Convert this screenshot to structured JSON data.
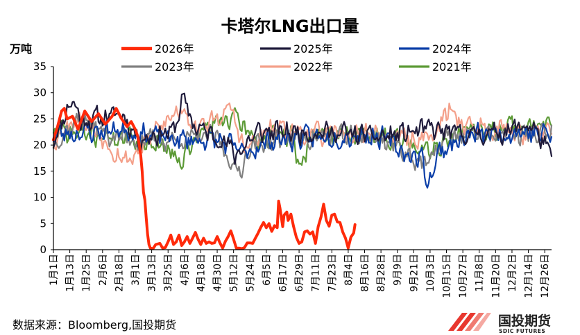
{
  "chart_data": {
    "type": "line",
    "title": "卡塔尔LNG出口量",
    "ylabel": "万吨",
    "xlabel": "",
    "ylim": [
      0,
      35
    ],
    "yticks": [
      0,
      5,
      10,
      15,
      20,
      25,
      30,
      35
    ],
    "x_tick_labels": [
      "1月1日",
      "1月13日",
      "1月25日",
      "2月6日",
      "2月18日",
      "3月1日",
      "3月13日",
      "3月25日",
      "4月6日",
      "4月18日",
      "4月30日",
      "5月12日",
      "5月24日",
      "6月5日",
      "6月17日",
      "6月29日",
      "7月11日",
      "7月23日",
      "8月4日",
      "8月16日",
      "8月28日",
      "9月9日",
      "9月21日",
      "10月3日",
      "10月15日",
      "10月27日",
      "11月8日",
      "11月20日",
      "12月2日",
      "12月14日",
      "12月26日"
    ],
    "x_days_per_tick": 12,
    "days_in_year": 366,
    "legend_position": "top",
    "grid": false,
    "series": [
      {
        "name": "2026年",
        "color": "#FF2A0A",
        "width": 4,
        "anchors": [
          [
            0,
            21
          ],
          [
            3,
            23.5
          ],
          [
            6,
            26.5
          ],
          [
            8,
            27
          ],
          [
            10,
            25
          ],
          [
            14,
            25.5
          ],
          [
            18,
            23
          ],
          [
            23,
            26.5
          ],
          [
            28,
            24.5
          ],
          [
            33,
            26
          ],
          [
            38,
            24
          ],
          [
            43,
            25.5
          ],
          [
            46,
            27
          ],
          [
            50,
            25
          ],
          [
            54,
            23.5
          ],
          [
            57,
            24.5
          ],
          [
            60,
            23
          ],
          [
            62,
            21.5
          ],
          [
            64,
            18
          ],
          [
            65,
            15
          ],
          [
            66,
            11
          ],
          [
            67,
            9.5
          ],
          [
            68,
            6
          ],
          [
            69,
            3
          ],
          [
            70,
            1
          ],
          [
            71,
            0.3
          ],
          [
            73,
            0.2
          ],
          [
            75,
            1
          ],
          [
            78,
            1.2
          ],
          [
            80,
            0.3
          ],
          [
            82,
            0.4
          ],
          [
            84,
            1.5
          ],
          [
            86,
            2.8
          ],
          [
            88,
            1
          ],
          [
            90,
            1.5
          ],
          [
            92,
            2.8
          ],
          [
            94,
            0.8
          ],
          [
            96,
            1.5
          ],
          [
            98,
            2.5
          ],
          [
            100,
            1.2
          ],
          [
            102,
            2.2
          ],
          [
            104,
            3.3
          ],
          [
            106,
            2
          ],
          [
            108,
            1
          ],
          [
            110,
            2.2
          ],
          [
            112,
            1.2
          ],
          [
            114,
            1.5
          ],
          [
            116,
            1.2
          ],
          [
            118,
            1.3
          ],
          [
            120,
            2.5
          ],
          [
            122,
            1.3
          ],
          [
            124,
            0.3
          ],
          [
            126,
            1.6
          ],
          [
            128,
            2.5
          ],
          [
            130,
            3.6
          ],
          [
            132,
            2
          ],
          [
            134,
            0.3
          ],
          [
            136,
            0.3
          ],
          [
            138,
            0.2
          ],
          [
            140,
            0.4
          ],
          [
            142,
            1.3
          ],
          [
            144,
            1.3
          ],
          [
            146,
            1.2
          ],
          [
            148,
            2.2
          ],
          [
            150,
            3.2
          ],
          [
            152,
            4.3
          ],
          [
            154,
            5.2
          ],
          [
            156,
            4.2
          ],
          [
            158,
            5
          ],
          [
            160,
            3.5
          ],
          [
            162,
            4.6
          ],
          [
            164,
            4.2
          ],
          [
            165,
            9.3
          ],
          [
            166,
            8
          ],
          [
            167,
            6.2
          ],
          [
            168,
            4.4
          ],
          [
            169,
            6.6
          ],
          [
            171,
            7.2
          ],
          [
            172,
            5.6
          ],
          [
            174,
            6.8
          ],
          [
            176,
            4.4
          ],
          [
            178,
            2.4
          ],
          [
            180,
            1.2
          ],
          [
            182,
            1.5
          ],
          [
            184,
            3.4
          ],
          [
            186,
            3.6
          ],
          [
            188,
            3
          ],
          [
            190,
            3.4
          ],
          [
            192,
            1.2
          ],
          [
            194,
            4.4
          ],
          [
            196,
            6.2
          ],
          [
            198,
            8.7
          ],
          [
            200,
            5.6
          ],
          [
            202,
            4.5
          ],
          [
            204,
            6.6
          ],
          [
            206,
            6.8
          ],
          [
            208,
            5.3
          ],
          [
            210,
            5.2
          ],
          [
            212,
            3.4
          ],
          [
            214,
            2.2
          ],
          [
            216,
            0.3
          ],
          [
            218,
            2.4
          ],
          [
            220,
            3.2
          ],
          [
            221,
            4.8
          ]
        ]
      },
      {
        "name": "2025年",
        "color": "#1F1B3B",
        "width": 2.2,
        "base": 22.3,
        "amp": 1.8,
        "seed": 11,
        "anchors": [
          [
            0,
            21
          ],
          [
            14,
            29
          ],
          [
            20,
            24.5
          ],
          [
            50,
            26
          ],
          [
            58,
            23
          ],
          [
            62,
            21
          ],
          [
            80,
            22.5
          ],
          [
            88,
            22.5
          ],
          [
            95,
            29
          ],
          [
            102,
            24
          ],
          [
            115,
            22
          ],
          [
            125,
            21
          ],
          [
            133,
            18
          ],
          [
            140,
            20
          ],
          [
            150,
            22.5
          ],
          [
            200,
            22.5
          ],
          [
            240,
            21.5
          ],
          [
            275,
            23
          ],
          [
            300,
            22
          ],
          [
            330,
            22.5
          ],
          [
            350,
            24
          ],
          [
            365,
            18
          ]
        ]
      },
      {
        "name": "2024年",
        "color": "#0B3FA8",
        "width": 2.2,
        "base": 22,
        "amp": 1.8,
        "seed": 23,
        "anchors": [
          [
            0,
            22
          ],
          [
            50,
            23
          ],
          [
            90,
            21
          ],
          [
            120,
            21
          ],
          [
            140,
            18.5
          ],
          [
            160,
            21
          ],
          [
            200,
            21.5
          ],
          [
            230,
            22
          ],
          [
            245,
            21
          ],
          [
            260,
            18
          ],
          [
            270,
            17.5
          ],
          [
            275,
            12.5
          ],
          [
            282,
            18.5
          ],
          [
            290,
            20
          ],
          [
            310,
            22
          ],
          [
            340,
            22.5
          ],
          [
            365,
            22
          ]
        ]
      },
      {
        "name": "2023年",
        "color": "#808080",
        "width": 2.2,
        "base": 21.8,
        "amp": 1.8,
        "seed": 37,
        "anchors": [
          [
            0,
            20.5
          ],
          [
            20,
            25
          ],
          [
            40,
            22
          ],
          [
            60,
            21
          ],
          [
            90,
            21
          ],
          [
            120,
            21.5
          ],
          [
            135,
            14.5
          ],
          [
            145,
            20
          ],
          [
            180,
            21.5
          ],
          [
            240,
            21.5
          ],
          [
            265,
            17.5
          ],
          [
            275,
            16
          ],
          [
            285,
            21
          ],
          [
            300,
            22
          ],
          [
            330,
            22
          ],
          [
            365,
            22
          ]
        ]
      },
      {
        "name": "2022年",
        "color": "#F4A08A",
        "width": 2.2,
        "base": 22.2,
        "amp": 1.8,
        "seed": 53,
        "anchors": [
          [
            0,
            21
          ],
          [
            18,
            26
          ],
          [
            30,
            23
          ],
          [
            45,
            19
          ],
          [
            55,
            17
          ],
          [
            65,
            20
          ],
          [
            95,
            27.5
          ],
          [
            105,
            23
          ],
          [
            125,
            26
          ],
          [
            130,
            27
          ],
          [
            140,
            19
          ],
          [
            160,
            23
          ],
          [
            200,
            22
          ],
          [
            240,
            22
          ],
          [
            260,
            21
          ],
          [
            280,
            22
          ],
          [
            290,
            27
          ],
          [
            300,
            24
          ],
          [
            330,
            23
          ],
          [
            365,
            22
          ]
        ]
      },
      {
        "name": "2021年",
        "color": "#5C9A36",
        "width": 2.2,
        "base": 22,
        "amp": 1.8,
        "seed": 71,
        "anchors": [
          [
            0,
            22.5
          ],
          [
            30,
            22
          ],
          [
            60,
            21
          ],
          [
            80,
            20
          ],
          [
            95,
            17.5
          ],
          [
            110,
            23
          ],
          [
            130,
            25.5
          ],
          [
            150,
            21
          ],
          [
            175,
            22
          ],
          [
            180,
            16
          ],
          [
            190,
            22
          ],
          [
            230,
            22
          ],
          [
            260,
            20.5
          ],
          [
            280,
            19.5
          ],
          [
            295,
            22
          ],
          [
            320,
            23
          ],
          [
            365,
            24
          ]
        ]
      }
    ],
    "source": "数据来源：Bloomberg,国投期货",
    "logo": {
      "cn": "国投期货",
      "en": "SDIC FUTURES"
    }
  }
}
